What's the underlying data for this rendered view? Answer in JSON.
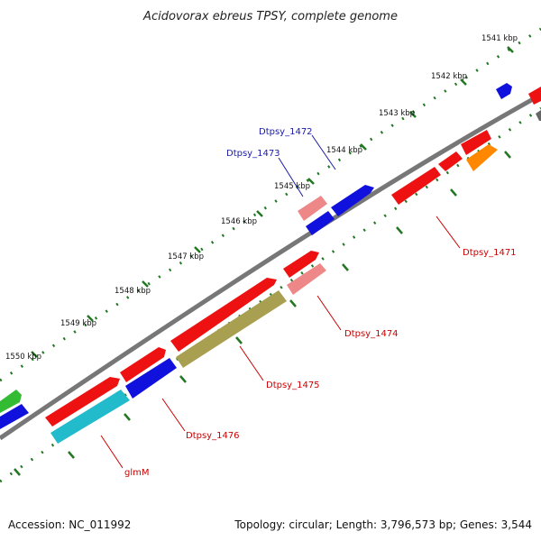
{
  "title": "Acidovorax ebreus TPSY, complete genome",
  "footer": {
    "accession": "Accession: NC_011992",
    "summary": "Topology: circular; Length: 3,796,573 bp; Genes: 3,544"
  },
  "ruler_labels": [
    "1541 kbp",
    "1542 kbp",
    "1543 kbp",
    "1544 kbp",
    "1545 kbp",
    "1546 kbp",
    "1547 kbp",
    "1548 kbp",
    "1549 kbp",
    "1550 kbp"
  ],
  "gene_labels": [
    "Dtpsy_1472",
    "Dtpsy_1473",
    "Dtpsy_1471",
    "Dtpsy_1474",
    "Dtpsy_1475",
    "Dtpsy_1476",
    "glmM"
  ],
  "colors": {
    "red": "#ee1111",
    "blue": "#1111dd",
    "pink": "#ee8888",
    "orange": "#ff8800",
    "olive": "#a8a050",
    "cyan": "#22bbcc",
    "green": "#33bb33",
    "backbone": "#777777",
    "tick": "#227722",
    "label_blue": "#1a1aa6",
    "label_red": "#cc0000"
  }
}
